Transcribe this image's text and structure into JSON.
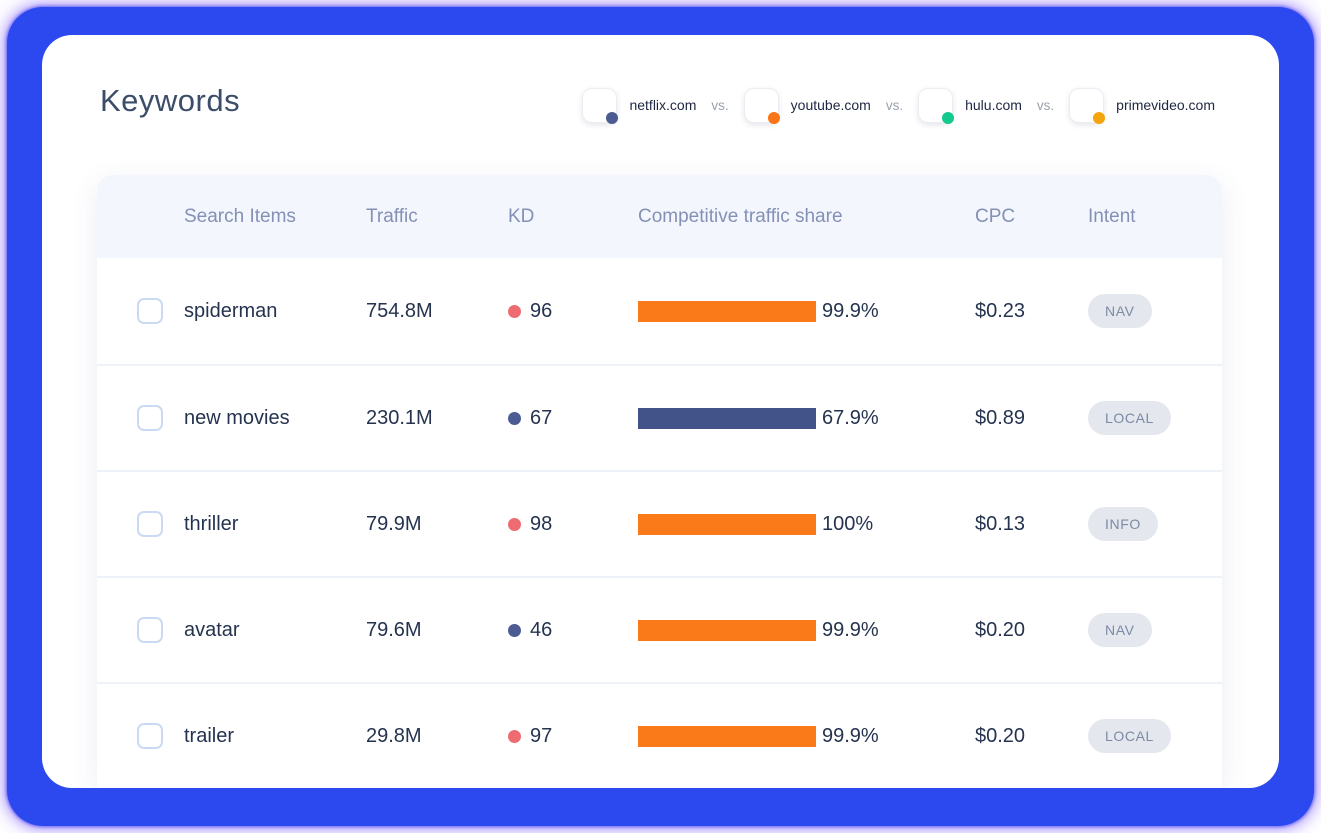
{
  "header": {
    "title": "Keywords",
    "separator": "vs.",
    "competitors": [
      {
        "domain": "netflix.com",
        "color": "#4c5b92"
      },
      {
        "domain": "youtube.com",
        "color": "#fa7517"
      },
      {
        "domain": "hulu.com",
        "color": "#14c98d"
      },
      {
        "domain": "primevideo.com",
        "color": "#f4a50e"
      }
    ]
  },
  "table": {
    "columns": [
      "Search Items",
      "Traffic",
      "KD",
      "Competitive traffic share",
      "CPC",
      "Intent"
    ],
    "rows": [
      {
        "keyword": "spiderman",
        "traffic": "754.8M",
        "kd": "96",
        "kd_color": "#ee6c71",
        "share": "99.9%",
        "share_color": "#fa7918",
        "cpc": "$0.23",
        "intent": "NAV"
      },
      {
        "keyword": "new movies",
        "traffic": "230.1M",
        "kd": "67",
        "kd_color": "#4c5b92",
        "share": "67.9%",
        "share_color": "#415389",
        "cpc": "$0.89",
        "intent": "LOCAL"
      },
      {
        "keyword": "thriller",
        "traffic": "79.9M",
        "kd": "98",
        "kd_color": "#ee6c71",
        "share": "100%",
        "share_color": "#fa7918",
        "cpc": "$0.13",
        "intent": "INFO"
      },
      {
        "keyword": "avatar",
        "traffic": "79.6M",
        "kd": "46",
        "kd_color": "#4c5b92",
        "share": "99.9%",
        "share_color": "#fa7918",
        "cpc": "$0.20",
        "intent": "NAV"
      },
      {
        "keyword": "trailer",
        "traffic": "29.8M",
        "kd": "97",
        "kd_color": "#ee6c71",
        "share": "99.9%",
        "share_color": "#fa7918",
        "cpc": "$0.20",
        "intent": "LOCAL"
      }
    ]
  },
  "colors": {
    "frame_blue": "#2b49ef",
    "header_band": "#f3f6fc",
    "row_text": "#25334f",
    "badge_bg": "#e4e7ed"
  }
}
